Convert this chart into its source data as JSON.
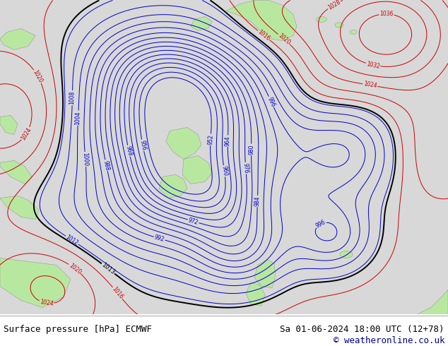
{
  "title_left": "Surface pressure [hPa] ECMWF",
  "title_right": "Sa 01-06-2024 18:00 UTC (12+78)",
  "copyright": "© weatheronline.co.uk",
  "bg_color": "#d8d8d8",
  "land_color": "#b8e8a0",
  "text_color": "#000000",
  "copyright_color": "#00008B",
  "fig_width": 6.34,
  "fig_height": 4.9,
  "dpi": 100,
  "contour_low_color": "#0000cc",
  "contour_high_color": "#cc0000",
  "contour_mid_color": "#000000"
}
